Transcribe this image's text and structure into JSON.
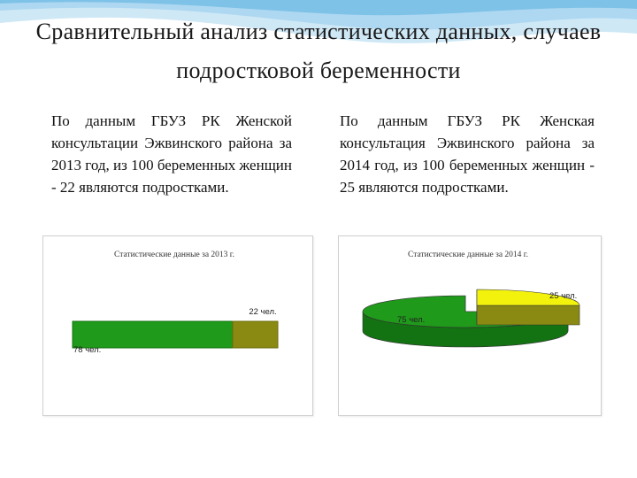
{
  "slide": {
    "title": "Сравнительный анализ статистических данных, случаев подростковой беременности",
    "left_text": "По данным ГБУЗ РК Женской консультации Эжвинского района за 2013 год, из 100 беременных женщин - 22 являются подростками.",
    "right_text": "По данным ГБУЗ РК Женская консультация Эжвинского района за 2014 год, из 100 беременных женщин - 25 являются подростками."
  },
  "colors": {
    "green": "#1f9a1a",
    "green_dark": "#137312",
    "olive": "#8a8a13",
    "olive_dark": "#6b6b0e",
    "yellow": "#f2f20d",
    "yellow_dark": "#bdbd0a"
  },
  "chart_data": [
    {
      "type": "bar",
      "title": "Статистические данные за 2013 г.",
      "series": [
        {
          "value": 78,
          "label": "78 чел."
        },
        {
          "value": 22,
          "label": "22 чел."
        }
      ]
    },
    {
      "type": "pie",
      "title": "Статистические данные за 2014 г.",
      "slices": [
        {
          "value": 75,
          "label": "75 чел."
        },
        {
          "value": 25,
          "label": "25 чел."
        }
      ]
    }
  ]
}
